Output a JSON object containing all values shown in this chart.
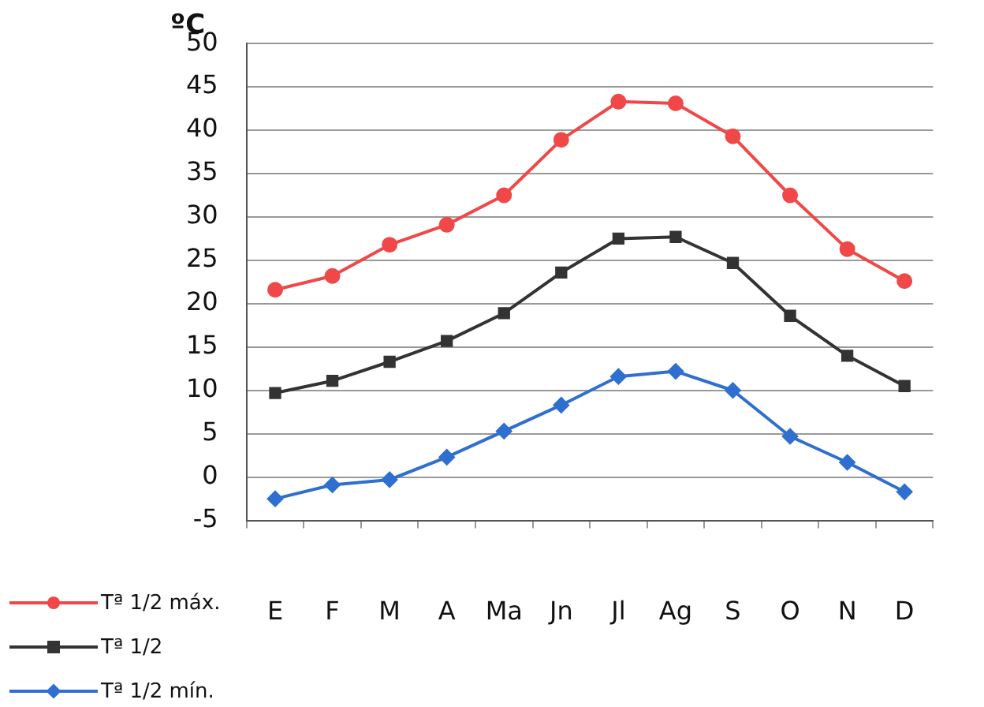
{
  "chart_data": {
    "type": "line",
    "ylabel": "ºC",
    "categories": [
      "E",
      "F",
      "M",
      "A",
      "Ma",
      "Jn",
      "Jl",
      "Ag",
      "S",
      "O",
      "N",
      "D"
    ],
    "series": [
      {
        "name": "Tª 1/2 máx.",
        "color": "#f04848",
        "marker": "circle",
        "values": [
          21.6,
          23.2,
          26.8,
          29.1,
          32.5,
          38.9,
          43.3,
          43.1,
          39.3,
          32.5,
          26.3,
          22.6
        ]
      },
      {
        "name": "Tª 1/2",
        "color": "#333333",
        "marker": "square",
        "values": [
          9.7,
          11.1,
          13.3,
          15.7,
          18.9,
          23.6,
          27.5,
          27.7,
          24.7,
          18.6,
          14.0,
          10.5
        ]
      },
      {
        "name": "Tª 1/2 mín.",
        "color": "#2f6fcf",
        "marker": "diamond",
        "values": [
          -2.5,
          -0.9,
          -0.3,
          2.3,
          5.3,
          8.3,
          11.6,
          12.2,
          10.0,
          4.7,
          1.7,
          -1.7
        ]
      }
    ],
    "ylim": [
      -5,
      50
    ],
    "yticks": [
      -5,
      0,
      5,
      10,
      15,
      20,
      25,
      30,
      35,
      40,
      45,
      50
    ],
    "grid": "y",
    "legend": "bottom left",
    "line_style": "solid"
  }
}
